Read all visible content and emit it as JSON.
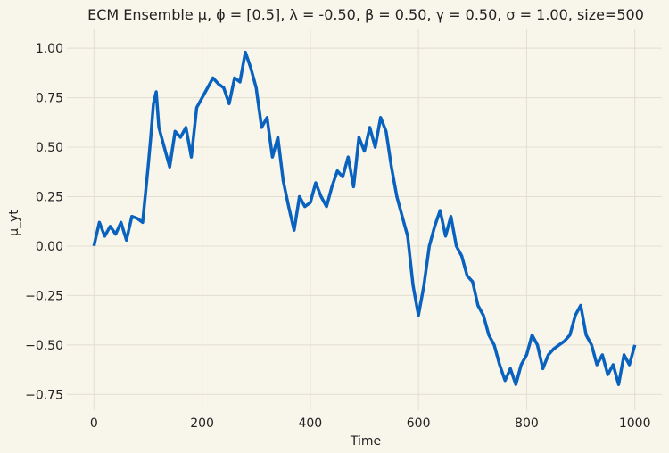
{
  "chart_data": {
    "type": "line",
    "title": "ECM Ensemble μ, ϕ = [0.5], λ = -0.50, β = 0.50, γ = 0.50, σ = 1.00, size=500",
    "xlabel": "Time",
    "ylabel": "μ_yt",
    "xlim": [
      -50,
      1050
    ],
    "ylim": [
      -0.83,
      1.1
    ],
    "xticks": [
      0,
      200,
      400,
      600,
      800,
      1000
    ],
    "yticks": [
      -0.75,
      -0.5,
      -0.25,
      0.0,
      0.25,
      0.5,
      0.75,
      1.0
    ],
    "xtick_labels": [
      "0",
      "200",
      "400",
      "600",
      "800",
      "1000"
    ],
    "ytick_labels": [
      "−0.75",
      "−0.50",
      "−0.25",
      "0.00",
      "0.25",
      "0.50",
      "0.75",
      "1.00"
    ],
    "grid": true,
    "line_color": "#0a62bf",
    "series": [
      {
        "x": [
          0,
          10,
          20,
          30,
          40,
          50,
          60,
          70,
          80,
          90,
          100,
          105,
          110,
          115,
          120,
          130,
          140,
          150,
          160,
          170,
          180,
          190,
          200,
          210,
          220,
          230,
          240,
          250,
          260,
          270,
          280,
          290,
          300,
          310,
          320,
          330,
          340,
          350,
          360,
          370,
          380,
          390,
          400,
          410,
          420,
          430,
          440,
          450,
          460,
          470,
          480,
          490,
          500,
          510,
          520,
          530,
          540,
          550,
          560,
          570,
          580,
          590,
          600,
          610,
          620,
          630,
          640,
          650,
          660,
          670,
          680,
          690,
          700,
          710,
          720,
          730,
          740,
          750,
          760,
          770,
          780,
          790,
          800,
          810,
          820,
          830,
          840,
          850,
          860,
          870,
          880,
          890,
          900,
          910,
          920,
          930,
          940,
          950,
          960,
          970,
          980,
          990,
          1000
        ],
        "y": [
          0.0,
          0.12,
          0.05,
          0.1,
          0.06,
          0.12,
          0.03,
          0.15,
          0.14,
          0.12,
          0.4,
          0.55,
          0.72,
          0.78,
          0.6,
          0.5,
          0.4,
          0.58,
          0.55,
          0.6,
          0.45,
          0.7,
          0.75,
          0.8,
          0.85,
          0.82,
          0.8,
          0.72,
          0.85,
          0.83,
          0.98,
          0.9,
          0.8,
          0.6,
          0.65,
          0.45,
          0.55,
          0.33,
          0.2,
          0.08,
          0.25,
          0.2,
          0.22,
          0.32,
          0.25,
          0.2,
          0.3,
          0.38,
          0.35,
          0.45,
          0.3,
          0.55,
          0.48,
          0.6,
          0.5,
          0.65,
          0.58,
          0.4,
          0.25,
          0.15,
          0.05,
          -0.2,
          -0.35,
          -0.2,
          0.0,
          0.1,
          0.18,
          0.05,
          0.15,
          0.0,
          -0.05,
          -0.15,
          -0.18,
          -0.3,
          -0.35,
          -0.45,
          -0.5,
          -0.6,
          -0.68,
          -0.62,
          -0.7,
          -0.6,
          -0.55,
          -0.45,
          -0.5,
          -0.62,
          -0.55,
          -0.52,
          -0.5,
          -0.48,
          -0.45,
          -0.35,
          -0.3,
          -0.45,
          -0.5,
          -0.6,
          -0.55,
          -0.65,
          -0.6,
          -0.7,
          -0.55,
          -0.6,
          -0.5
        ]
      }
    ]
  }
}
